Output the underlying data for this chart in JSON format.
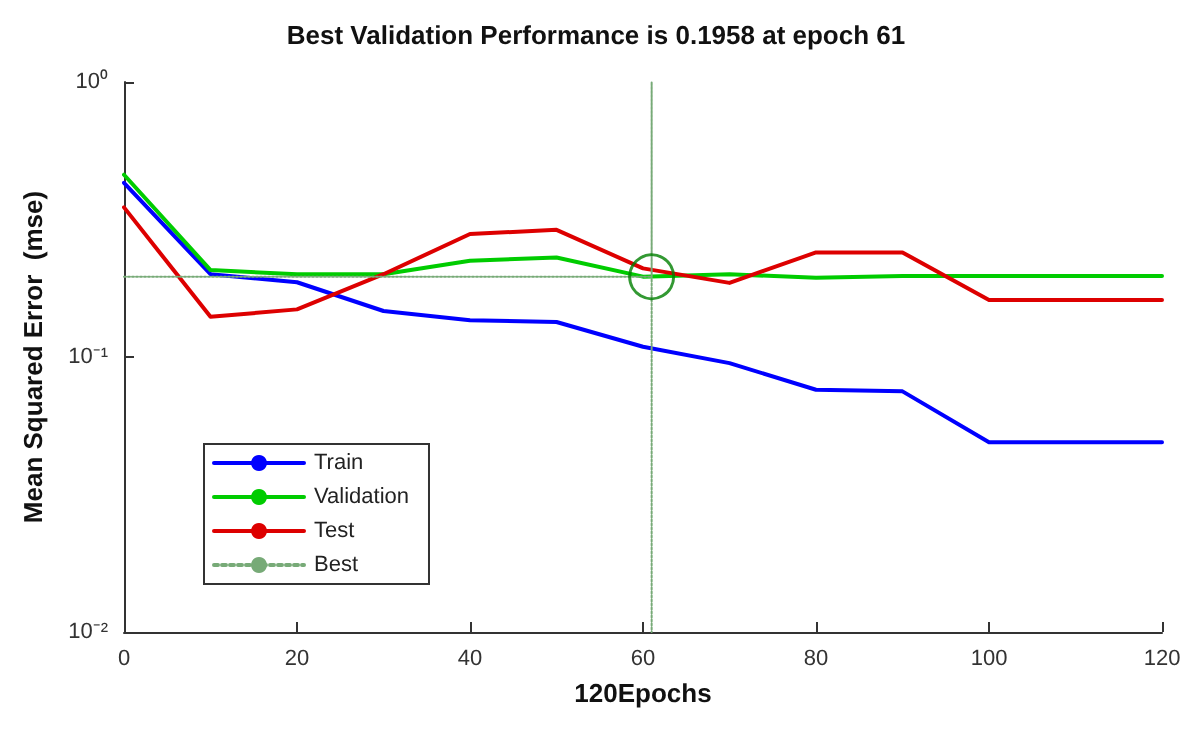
{
  "chart_data": {
    "type": "line",
    "title": "Best Validation Performance is 0.1958 at epoch 61",
    "xlabel": "120Epochs",
    "ylabel": "Mean Squared Error  (mse)",
    "log": "y",
    "xlim": [
      0,
      120
    ],
    "xticks": [
      0,
      20,
      40,
      60,
      80,
      100,
      120
    ],
    "ylim": [
      0.01,
      1
    ],
    "yticks": [
      {
        "value": 0.01,
        "label": "10⁻²"
      },
      {
        "value": 0.1,
        "label": "10⁻¹"
      },
      {
        "value": 1,
        "label": "10⁰"
      }
    ],
    "legend": "bottom left",
    "marker": "none",
    "line_style": "solid",
    "series": [
      {
        "name": "Train",
        "color": "#0000ff",
        "x": [
          0,
          10,
          20,
          30,
          40,
          50,
          60,
          70,
          80,
          90,
          100,
          110,
          120
        ],
        "values": [
          0.43,
          0.2,
          0.187,
          0.147,
          0.136,
          0.134,
          0.109,
          0.095,
          0.076,
          0.075,
          0.049,
          0.049,
          0.049
        ]
      },
      {
        "name": "Validation",
        "color": "#00cc00",
        "x": [
          0,
          10,
          20,
          30,
          40,
          50,
          60,
          70,
          80,
          90,
          100,
          110,
          120
        ],
        "values": [
          0.46,
          0.207,
          0.2,
          0.2,
          0.224,
          0.23,
          0.196,
          0.2,
          0.194,
          0.197,
          0.197,
          0.197,
          0.197
        ]
      },
      {
        "name": "Test",
        "color": "#dd0000",
        "x": [
          0,
          10,
          20,
          30,
          40,
          50,
          60,
          70,
          80,
          90,
          100,
          110,
          120
        ],
        "values": [
          0.35,
          0.14,
          0.149,
          0.2,
          0.28,
          0.29,
          0.21,
          0.186,
          0.24,
          0.24,
          0.161,
          0.161,
          0.161
        ]
      },
      {
        "name": "Best",
        "color": "#77aa77",
        "line_style": "dotted",
        "x": [
          0,
          61,
          61,
          61
        ],
        "values": [
          0.1958,
          0.1958,
          1,
          0.01
        ]
      },
      {
        "type": "scatter",
        "color": "#008000",
        "marker": "circle",
        "x": [
          61
        ],
        "values": [
          0.1958
        ]
      }
    ]
  }
}
